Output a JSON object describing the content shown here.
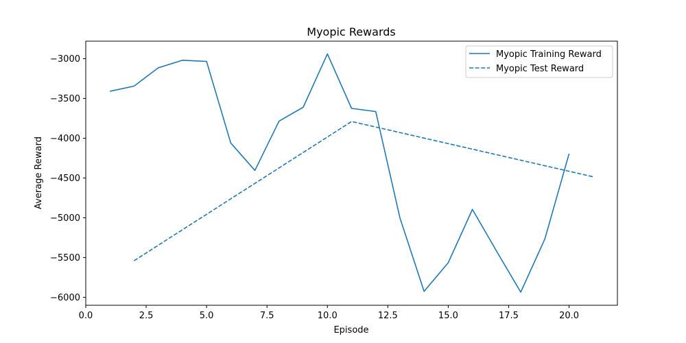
{
  "chart_data": {
    "type": "line",
    "title": "Myopic Rewards",
    "xlabel": "Episode",
    "ylabel": "Average Reward",
    "xlim": [
      0.0,
      22.0
    ],
    "ylim": [
      -6100,
      -2780
    ],
    "xticks": [
      0.0,
      2.5,
      5.0,
      7.5,
      10.0,
      12.5,
      15.0,
      17.5,
      20.0
    ],
    "xtick_labels": [
      "0.0",
      "2.5",
      "5.0",
      "7.5",
      "10.0",
      "12.5",
      "15.0",
      "17.5",
      "20.0"
    ],
    "yticks": [
      -3000,
      -3500,
      -4000,
      -4500,
      -5000,
      -5500,
      -6000
    ],
    "ytick_labels": [
      "−3000",
      "−3500",
      "−4000",
      "−4500",
      "−5000",
      "−5500",
      "−6000"
    ],
    "grid": false,
    "legend_position": "top-right",
    "series": [
      {
        "name": "Myopic Training Reward",
        "style": "solid",
        "color": "#1f77b4",
        "x": [
          1,
          2,
          3,
          4,
          5,
          6,
          7,
          8,
          9,
          10,
          11,
          12,
          13,
          14,
          15,
          16,
          17,
          18,
          19,
          20
        ],
        "y": [
          -3410,
          -3345,
          -3115,
          -3020,
          -3035,
          -4060,
          -4405,
          -3785,
          -3610,
          -2940,
          -3625,
          -3665,
          -5000,
          -5925,
          -5565,
          -4895,
          -5420,
          -5935,
          -5265,
          -4195
        ]
      },
      {
        "name": "Myopic Test Reward",
        "style": "dashed",
        "color": "#1f77b4",
        "x": [
          2,
          11,
          21
        ],
        "y": [
          -5540,
          -3790,
          -4485
        ]
      }
    ]
  }
}
